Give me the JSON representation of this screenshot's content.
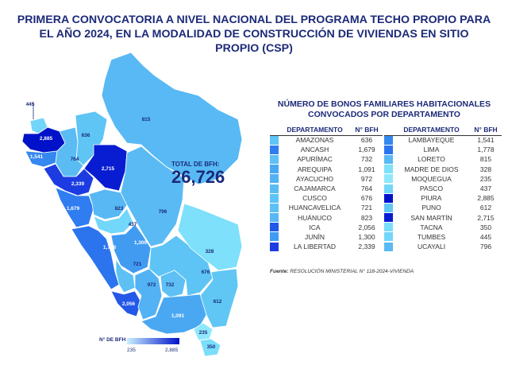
{
  "title": "PRIMERA CONVOCATORIA A NIVEL NACIONAL DEL PROGRAMA TECHO PROPIO PARA EL AÑO 2024, EN LA MODALIDAD DE CONSTRUCCIÓN DE VIVIENDAS EN SITIO PROPIO (CSP)",
  "total": {
    "label": "TOTAL DE BFH:",
    "value": "26,726"
  },
  "table": {
    "title": "NÚMERO DE BONOS FAMILIARES HABITACIONALES CONVOCADOS POR DEPARTAMENTO",
    "col_dept": "DEPARTAMENTO",
    "col_val": "N° BFH",
    "left": [
      {
        "name": "AMAZONAS",
        "value": "636",
        "color": "#5ec5f5"
      },
      {
        "name": "ANCASH",
        "value": "1,679",
        "color": "#2f7df0"
      },
      {
        "name": "APURÍMAC",
        "value": "732",
        "color": "#5ec0f4"
      },
      {
        "name": "AREQUIPA",
        "value": "1,091",
        "color": "#4aa8f2"
      },
      {
        "name": "AYACUCHO",
        "value": "972",
        "color": "#52b2f3"
      },
      {
        "name": "CAJAMARCA",
        "value": "764",
        "color": "#5bbcf4"
      },
      {
        "name": "CUSCO",
        "value": "676",
        "color": "#5ec4f5"
      },
      {
        "name": "HUANCAVELICA",
        "value": "721",
        "color": "#5dc1f4"
      },
      {
        "name": "HUÁNUCO",
        "value": "823",
        "color": "#58b8f4"
      },
      {
        "name": "ICA",
        "value": "2,056",
        "color": "#2358e8"
      },
      {
        "name": "JUNÍN",
        "value": "1,300",
        "color": "#419bf1"
      },
      {
        "name": "LA LIBERTAD",
        "value": "2,339",
        "color": "#1c3ce2"
      }
    ],
    "right": [
      {
        "name": "LAMBAYEQUE",
        "value": "1,541",
        "color": "#3588f0"
      },
      {
        "name": "LIMA",
        "value": "1,778",
        "color": "#2b74ee"
      },
      {
        "name": "LORETO",
        "value": "815",
        "color": "#58b9f4"
      },
      {
        "name": "MADRE DE DIOS",
        "value": "328",
        "color": "#7ee0fb"
      },
      {
        "name": "MOQUEGUA",
        "value": "235",
        "color": "#8ee8fc"
      },
      {
        "name": "PASCO",
        "value": "437",
        "color": "#72d7fa"
      },
      {
        "name": "PIURA",
        "value": "2,885",
        "color": "#0012c9"
      },
      {
        "name": "PUNO",
        "value": "612",
        "color": "#60c7f5"
      },
      {
        "name": "SAN MARTÍN",
        "value": "2,715",
        "color": "#081cd2"
      },
      {
        "name": "TACNA",
        "value": "350",
        "color": "#7adefb"
      },
      {
        "name": "TUMBES",
        "value": "445",
        "color": "#72d6fa"
      },
      {
        "name": "UCAYALI",
        "value": "796",
        "color": "#5abaf4"
      }
    ]
  },
  "source": {
    "label": "Fuente:",
    "text": "RESOLUCIÓN MINISTERIAL N° 118-2024-VIVIENDA"
  },
  "legend": {
    "title": "N° DE BFH",
    "min": "235",
    "max": "2,885"
  },
  "map_labels": {
    "tumbes": "445",
    "piura": "2,885",
    "lambayeque": "1,541",
    "amazonas": "636",
    "cajamarca": "764",
    "sanmartin": "2,715",
    "loreto": "815",
    "lalibertad": "2,339",
    "ancash": "1,679",
    "huanuco": "823",
    "ucayali": "796",
    "pasco": "437",
    "junin": "1,300",
    "lima": "1,778",
    "huancavelica": "721",
    "madrededios": "328",
    "cusco": "676",
    "ayacucho": "972",
    "apurimac": "732",
    "ica": "2,056",
    "puno": "612",
    "arequipa": "1,091",
    "moquegua": "235",
    "tacna": "350"
  }
}
